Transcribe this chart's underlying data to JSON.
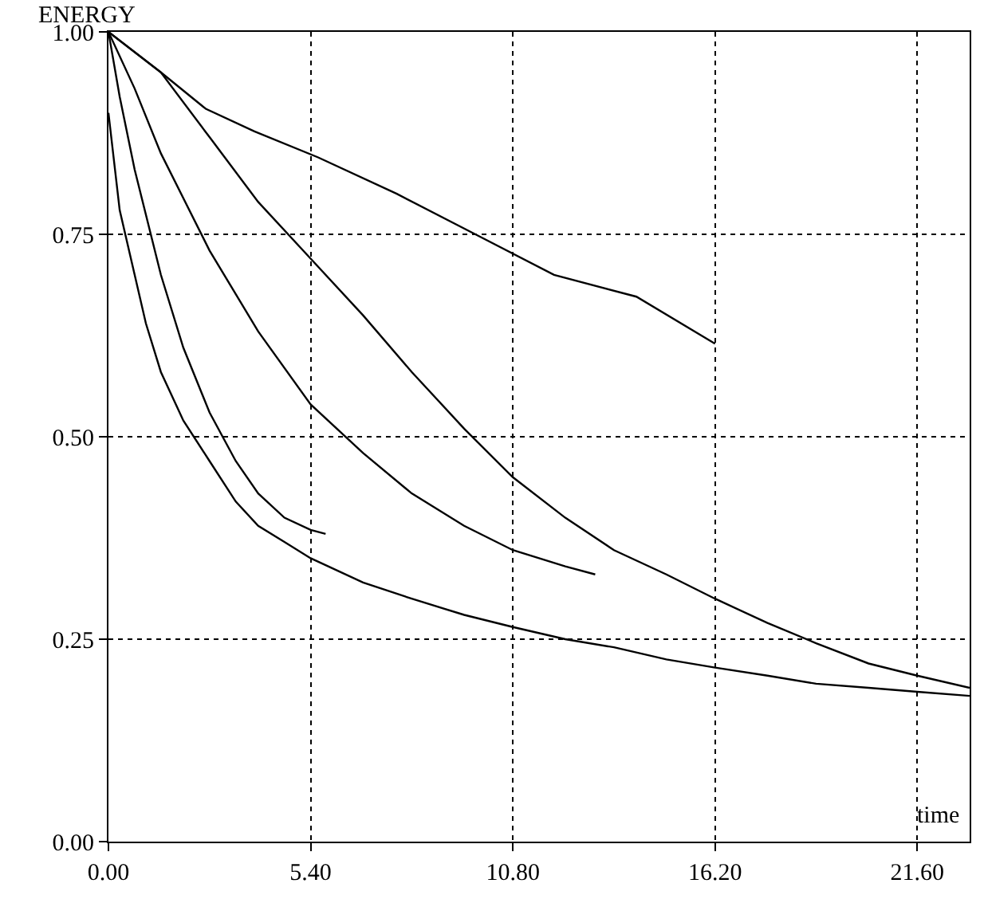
{
  "chart_data": {
    "type": "line",
    "xlabel": "time",
    "ylabel": "ENERGY",
    "xlim": [
      0,
      23.0
    ],
    "ylim": [
      0,
      1.0
    ],
    "xticks": [
      {
        "value": 0,
        "label": "0.00"
      },
      {
        "value": 5.4,
        "label": "5.40"
      },
      {
        "value": 10.8,
        "label": "10.80"
      },
      {
        "value": 16.2,
        "label": "16.20"
      },
      {
        "value": 21.6,
        "label": "21.60"
      }
    ],
    "yticks": [
      {
        "value": 0,
        "label": "0.00"
      },
      {
        "value": 0.25,
        "label": "0.25"
      },
      {
        "value": 0.5,
        "label": "0.50"
      },
      {
        "value": 0.75,
        "label": "0.75"
      },
      {
        "value": 1.0,
        "label": "1.00"
      }
    ],
    "grid": true,
    "marker": "none",
    "line_style": "solid",
    "series": [
      {
        "color": "#000000",
        "x": [
          0,
          1.4,
          2.6,
          3.9,
          5.6,
          7.7,
          9.8,
          11.9,
          14.1,
          16.2
        ],
        "values": [
          1.0,
          0.95,
          0.905,
          0.877,
          0.845,
          0.8,
          0.75,
          0.7,
          0.673,
          0.615
        ]
      },
      {
        "color": "#000000",
        "x": [
          0,
          1.4,
          2.7,
          4.0,
          5.4,
          6.8,
          8.1,
          9.5,
          10.8,
          12.2,
          13.5,
          14.9,
          16.2,
          17.6,
          18.9,
          20.3,
          21.6,
          23.0
        ],
        "values": [
          1.0,
          0.95,
          0.87,
          0.79,
          0.72,
          0.65,
          0.58,
          0.51,
          0.45,
          0.4,
          0.36,
          0.33,
          0.3,
          0.27,
          0.245,
          0.22,
          0.205,
          0.19
        ]
      },
      {
        "color": "#000000",
        "x": [
          0,
          0.7,
          1.4,
          2.7,
          4.0,
          5.4,
          6.8,
          8.1,
          9.5,
          10.8,
          12.2,
          13.0
        ],
        "values": [
          1.0,
          0.93,
          0.85,
          0.73,
          0.63,
          0.54,
          0.48,
          0.43,
          0.39,
          0.36,
          0.34,
          0.33
        ]
      },
      {
        "color": "#000000",
        "x": [
          0,
          0.3,
          0.7,
          1.4,
          2.0,
          2.7,
          3.4,
          4.0,
          4.7,
          5.4,
          5.8
        ],
        "values": [
          1.0,
          0.92,
          0.83,
          0.7,
          0.61,
          0.53,
          0.47,
          0.43,
          0.4,
          0.385,
          0.38
        ]
      },
      {
        "color": "#000000",
        "x": [
          0,
          0.3,
          0.7,
          1.0,
          1.4,
          2.0,
          2.7,
          3.4,
          4.0,
          4.7,
          5.4,
          6.8,
          8.1,
          9.5,
          10.8,
          12.2,
          13.5,
          14.9,
          16.2,
          17.6,
          18.9,
          20.3,
          21.6,
          23.0
        ],
        "values": [
          0.9,
          0.78,
          0.7,
          0.64,
          0.58,
          0.52,
          0.47,
          0.42,
          0.39,
          0.37,
          0.35,
          0.32,
          0.3,
          0.28,
          0.265,
          0.25,
          0.24,
          0.225,
          0.215,
          0.205,
          0.195,
          0.19,
          0.185,
          0.18
        ]
      }
    ]
  }
}
